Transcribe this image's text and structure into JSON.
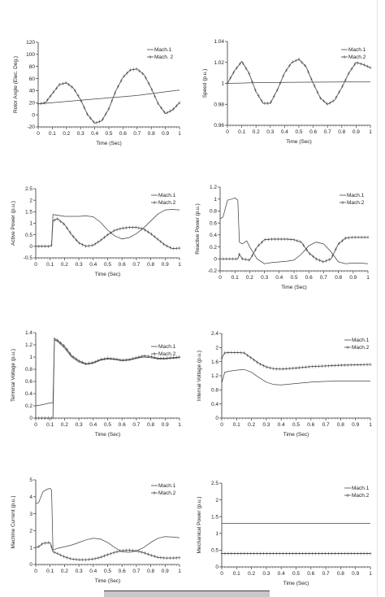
{
  "chart_data": [
    {
      "type": "line",
      "xlabel": "Time (Sec)",
      "ylabel": "Rotor Angle (Elec. Deg.)",
      "xlim": [
        0,
        1
      ],
      "ylim": [
        -20,
        120
      ],
      "xticks": [
        "0",
        "0.1",
        "0.2",
        "0.3",
        "0.4",
        "0.5",
        "0.6",
        "0.7",
        "0.8",
        "0.9",
        "1"
      ],
      "yticks": [
        "120",
        "100",
        "80",
        "60",
        "40",
        "20",
        "0",
        "-20"
      ],
      "ytick_values": [
        120,
        100,
        80,
        60,
        40,
        20,
        0,
        -20
      ],
      "legend": [
        "Mach.1",
        "Mach. 2"
      ],
      "series": [
        {
          "name": "Mach.1",
          "marker": false,
          "x": [
            0,
            0.1,
            0.2,
            0.3,
            0.4,
            0.5,
            0.6,
            0.7,
            0.8,
            0.9,
            1.0
          ],
          "y": [
            18,
            20,
            22,
            24,
            26,
            28,
            30,
            32,
            35,
            38,
            41
          ]
        },
        {
          "name": "Mach. 2",
          "marker": true,
          "x": [
            0,
            0.05,
            0.1,
            0.15,
            0.2,
            0.25,
            0.3,
            0.35,
            0.4,
            0.45,
            0.5,
            0.55,
            0.6,
            0.65,
            0.7,
            0.75,
            0.8,
            0.85,
            0.9,
            0.95,
            1.0
          ],
          "y": [
            18,
            20,
            35,
            50,
            53,
            44,
            25,
            0,
            -14,
            -10,
            10,
            40,
            62,
            74,
            76,
            66,
            44,
            18,
            2,
            8,
            20
          ]
        }
      ]
    },
    {
      "type": "line",
      "xlabel": "Time (Sec)",
      "ylabel": "Speed (p.u.)",
      "xlim": [
        0,
        1
      ],
      "ylim": [
        0.96,
        1.04
      ],
      "xticks": [
        "0",
        "0.1",
        "0.2",
        "0.3",
        "0.4",
        "0.5",
        "0.6",
        "0.7",
        "0.8",
        "0.9",
        "1"
      ],
      "yticks": [
        "1.04",
        "1.02",
        "1",
        "0.98",
        "0.96"
      ],
      "ytick_values": [
        1.04,
        1.02,
        1,
        0.98,
        0.96
      ],
      "legend": [
        "Mach.1",
        "Mach.2"
      ],
      "series": [
        {
          "name": "Mach.1",
          "marker": false,
          "x": [
            0,
            0.1,
            0.2,
            0.4,
            0.6,
            0.8,
            1.0
          ],
          "y": [
            1.0,
            1.0003,
            1.0007,
            1.001,
            1.0012,
            1.0013,
            1.0013
          ]
        },
        {
          "name": "Mach.2",
          "marker": true,
          "x": [
            0,
            0.05,
            0.1,
            0.15,
            0.2,
            0.25,
            0.3,
            0.35,
            0.4,
            0.45,
            0.5,
            0.55,
            0.6,
            0.65,
            0.7,
            0.75,
            0.8,
            0.85,
            0.9,
            0.95,
            1.0
          ],
          "y": [
            1.0,
            1.012,
            1.021,
            1.01,
            0.992,
            0.981,
            0.981,
            0.994,
            1.01,
            1.02,
            1.023,
            1.016,
            1.0,
            0.986,
            0.98,
            0.984,
            0.996,
            1.01,
            1.02,
            1.018,
            1.015
          ]
        }
      ]
    },
    {
      "type": "line",
      "xlabel": "Time (Sec)",
      "ylabel": "Active Power (p.u.)",
      "xlim": [
        0,
        1
      ],
      "ylim": [
        -0.5,
        2.5
      ],
      "xticks": [
        "0",
        "0.1",
        "0.2",
        "0.3",
        "0.4",
        "0.5",
        "0.6",
        "0.7",
        "0.8",
        "0.9",
        "1"
      ],
      "yticks": [
        "2.5",
        "2",
        "1.5",
        "1",
        "0.5",
        "0",
        "-0.5"
      ],
      "ytick_values": [
        2.5,
        2,
        1.5,
        1,
        0.5,
        0,
        -0.5
      ],
      "legend": [
        "Mach.1",
        "Mach.2"
      ],
      "series": [
        {
          "name": "Mach.1",
          "marker": false,
          "x": [
            0,
            0.1,
            0.11,
            0.12,
            0.2,
            0.3,
            0.35,
            0.4,
            0.45,
            0.5,
            0.55,
            0.6,
            0.65,
            0.7,
            0.75,
            0.8,
            0.85,
            0.9,
            0.95,
            1.0
          ],
          "y": [
            0,
            0,
            0.05,
            1.38,
            1.3,
            1.3,
            1.32,
            1.28,
            1.05,
            0.7,
            0.45,
            0.32,
            0.38,
            0.55,
            0.8,
            1.1,
            1.4,
            1.58,
            1.6,
            1.58
          ]
        },
        {
          "name": "Mach.2",
          "marker": true,
          "x": [
            0,
            0.1,
            0.11,
            0.12,
            0.15,
            0.2,
            0.25,
            0.3,
            0.35,
            0.4,
            0.45,
            0.5,
            0.55,
            0.6,
            0.65,
            0.7,
            0.75,
            0.8,
            0.85,
            0.9,
            0.95,
            1.0
          ],
          "y": [
            0,
            0,
            0.05,
            1.1,
            1.2,
            0.95,
            0.5,
            0.15,
            0.0,
            0.05,
            0.25,
            0.5,
            0.7,
            0.78,
            0.82,
            0.82,
            0.75,
            0.55,
            0.3,
            0.05,
            -0.1,
            -0.08
          ]
        }
      ]
    },
    {
      "type": "line",
      "xlabel": "Time (Sec)",
      "ylabel": "Reactive Power (p.u.)",
      "xlim": [
        0,
        1
      ],
      "ylim": [
        -0.2,
        1.2
      ],
      "xticks": [
        "0",
        "0.1",
        "0.2",
        "0.3",
        "0.4",
        "0.5",
        "0.6",
        "0.7",
        "0.8",
        "0.9",
        "1"
      ],
      "yticks": [
        "1.2",
        "1",
        "0.8",
        "0.6",
        "0.4",
        "0.2",
        "0",
        "-0.2"
      ],
      "ytick_values": [
        1.2,
        1,
        0.8,
        0.6,
        0.4,
        0.2,
        0,
        -0.2
      ],
      "legend": [
        "Mach.1",
        "Mach.2"
      ],
      "series": [
        {
          "name": "Mach.1",
          "marker": false,
          "x": [
            0,
            0.02,
            0.05,
            0.08,
            0.1,
            0.12,
            0.13,
            0.15,
            0.18,
            0.2,
            0.25,
            0.3,
            0.35,
            0.4,
            0.45,
            0.5,
            0.55,
            0.6,
            0.65,
            0.7,
            0.75,
            0.8,
            0.85,
            0.9,
            0.95,
            1.0
          ],
          "y": [
            0.67,
            0.7,
            0.98,
            1.0,
            1.02,
            0.98,
            0.28,
            0.25,
            0.3,
            0.2,
            0.0,
            -0.08,
            -0.06,
            -0.05,
            -0.04,
            -0.02,
            0.08,
            0.22,
            0.28,
            0.25,
            0.12,
            -0.05,
            -0.08,
            -0.07,
            -0.07,
            -0.08
          ]
        },
        {
          "name": "Mach.2",
          "marker": true,
          "x": [
            0,
            0.1,
            0.12,
            0.13,
            0.15,
            0.2,
            0.25,
            0.3,
            0.35,
            0.4,
            0.45,
            0.5,
            0.55,
            0.6,
            0.65,
            0.7,
            0.75,
            0.8,
            0.85,
            0.9,
            0.95,
            1.0
          ],
          "y": [
            0,
            0,
            0.0,
            0.08,
            0.0,
            -0.02,
            0.2,
            0.32,
            0.33,
            0.33,
            0.33,
            0.32,
            0.28,
            0.1,
            0.0,
            -0.05,
            0.0,
            0.25,
            0.35,
            0.36,
            0.36,
            0.36
          ]
        }
      ]
    },
    {
      "type": "line",
      "xlabel": "Time (Sec)",
      "ylabel": "Terminal Voltage (p.u.)",
      "xlim": [
        0,
        1
      ],
      "ylim": [
        0,
        1.4
      ],
      "xticks": [
        "0",
        "0.1",
        "0.2",
        "0.3",
        "0.4",
        "0.5",
        "0.6",
        "0.7",
        "0.8",
        "0.9",
        "1"
      ],
      "yticks": [
        "1.4",
        "1.2",
        "1",
        "0.8",
        "0.6",
        "0.4",
        "0.2",
        "0"
      ],
      "ytick_values": [
        1.4,
        1.2,
        1,
        0.8,
        0.6,
        0.4,
        0.2,
        0
      ],
      "legend": [
        "Mach.1",
        "Mach.2"
      ],
      "series": [
        {
          "name": "Mach.1",
          "marker": false,
          "x": [
            0,
            0.05,
            0.1,
            0.12,
            0.13,
            0.15,
            0.2,
            0.25,
            0.3,
            0.35,
            0.4,
            0.45,
            0.5,
            0.55,
            0.6,
            0.65,
            0.7,
            0.75,
            0.8,
            0.85,
            0.9,
            0.95,
            1.0
          ],
          "y": [
            0.2,
            0.22,
            0.25,
            0.25,
            1.28,
            1.26,
            1.15,
            1.0,
            0.92,
            0.88,
            0.9,
            0.95,
            0.97,
            0.96,
            0.94,
            0.95,
            0.98,
            1.0,
            0.99,
            0.97,
            0.97,
            0.98,
            0.99
          ]
        },
        {
          "name": "Mach.2",
          "marker": true,
          "x": [
            0,
            0.1,
            0.12,
            0.13,
            0.15,
            0.2,
            0.25,
            0.3,
            0.35,
            0.4,
            0.45,
            0.5,
            0.55,
            0.6,
            0.65,
            0.7,
            0.75,
            0.8,
            0.85,
            0.9,
            0.95,
            1.0
          ],
          "y": [
            0,
            0,
            0,
            1.3,
            1.28,
            1.18,
            1.02,
            0.94,
            0.89,
            0.91,
            0.96,
            0.98,
            0.97,
            0.95,
            0.96,
            0.99,
            1.02,
            1.01,
            0.98,
            0.98,
            0.99,
            1.0
          ]
        }
      ]
    },
    {
      "type": "line",
      "xlabel": "Time (Sec)",
      "ylabel": "Internal Voltage (p.u.)",
      "xlim": [
        0,
        1
      ],
      "ylim": [
        0,
        2.4
      ],
      "xticks": [
        "0",
        "0.1",
        "0.2",
        "0.3",
        "0.4",
        "0.5",
        "0.6",
        "0.7",
        "0.8",
        "0.9",
        "1"
      ],
      "yticks": [
        "2.4",
        "2",
        "1.6",
        "1.2",
        "0.8",
        "0.4",
        "0"
      ],
      "ytick_values": [
        2.4,
        2,
        1.6,
        1.2,
        0.8,
        0.4,
        0
      ],
      "legend": [
        "Mach.1",
        "Mach.2"
      ],
      "series": [
        {
          "name": "Mach.1",
          "marker": false,
          "x": [
            0,
            0.02,
            0.05,
            0.1,
            0.15,
            0.2,
            0.25,
            0.3,
            0.35,
            0.4,
            0.5,
            0.6,
            0.7,
            0.8,
            0.9,
            1.0
          ],
          "y": [
            1.0,
            1.3,
            1.33,
            1.36,
            1.38,
            1.3,
            1.15,
            1.02,
            0.95,
            0.94,
            0.98,
            1.02,
            1.04,
            1.05,
            1.05,
            1.05
          ]
        },
        {
          "name": "Mach.2",
          "marker": true,
          "x": [
            0,
            0.02,
            0.05,
            0.1,
            0.15,
            0.2,
            0.25,
            0.3,
            0.35,
            0.4,
            0.5,
            0.6,
            0.7,
            0.8,
            0.9,
            1.0
          ],
          "y": [
            1.7,
            1.85,
            1.86,
            1.86,
            1.85,
            1.7,
            1.55,
            1.45,
            1.4,
            1.39,
            1.42,
            1.46,
            1.48,
            1.5,
            1.51,
            1.52
          ]
        }
      ]
    },
    {
      "type": "line",
      "xlabel": "Time (Sec)",
      "ylabel": "Machine Current (p.u.)",
      "xlim": [
        0,
        1
      ],
      "ylim": [
        0,
        5
      ],
      "xticks": [
        "0",
        "0.1",
        "0.2",
        "0.3",
        "0.4",
        "0.5",
        "0.6",
        "0.7",
        "0.8",
        "0.9",
        "1"
      ],
      "yticks": [
        "5",
        "4",
        "3",
        "2",
        "1",
        "0"
      ],
      "ytick_values": [
        5,
        4,
        3,
        2,
        1,
        0
      ],
      "legend": [
        "Mach.1",
        "Mach.2"
      ],
      "series": [
        {
          "name": "Mach.1",
          "marker": false,
          "x": [
            0,
            0.02,
            0.05,
            0.08,
            0.1,
            0.11,
            0.12,
            0.15,
            0.2,
            0.25,
            0.3,
            0.35,
            0.4,
            0.45,
            0.5,
            0.55,
            0.6,
            0.65,
            0.7,
            0.75,
            0.8,
            0.85,
            0.9,
            0.95,
            1.0
          ],
          "y": [
            3.6,
            3.65,
            4.3,
            4.45,
            4.5,
            4.4,
            0.85,
            0.95,
            1.05,
            1.15,
            1.3,
            1.45,
            1.55,
            1.5,
            1.3,
            1.0,
            0.75,
            0.72,
            0.8,
            1.0,
            1.3,
            1.55,
            1.65,
            1.62,
            1.58
          ]
        },
        {
          "name": "Mach.2",
          "marker": true,
          "x": [
            0,
            0.02,
            0.05,
            0.1,
            0.12,
            0.15,
            0.2,
            0.25,
            0.3,
            0.35,
            0.4,
            0.45,
            0.5,
            0.55,
            0.6,
            0.65,
            0.7,
            0.75,
            0.8,
            0.85,
            0.9,
            0.95,
            1.0
          ],
          "y": [
            1.0,
            1.05,
            1.25,
            1.3,
            0.75,
            0.65,
            0.45,
            0.32,
            0.28,
            0.28,
            0.32,
            0.42,
            0.58,
            0.72,
            0.82,
            0.85,
            0.8,
            0.7,
            0.55,
            0.42,
            0.38,
            0.38,
            0.4
          ]
        }
      ]
    },
    {
      "type": "line",
      "xlabel": "Time (Sec)",
      "ylabel": "Mechanical Power (p.u.)",
      "xlim": [
        0,
        1
      ],
      "ylim": [
        0,
        2.5
      ],
      "xticks": [
        "0",
        "0.1",
        "0.2",
        "0.3",
        "0.4",
        "0.5",
        "0.6",
        "0.7",
        "0.8",
        "0.9",
        "1"
      ],
      "yticks": [
        "2.5",
        "2",
        "1.5",
        "1",
        "0.5",
        "0"
      ],
      "ytick_values": [
        2.5,
        2,
        1.5,
        1,
        0.5,
        0
      ],
      "legend": [
        "Mach.1",
        "Mach.2"
      ],
      "series": [
        {
          "name": "Mach.1",
          "marker": false,
          "x": [
            0,
            1.0
          ],
          "y": [
            1.3,
            1.3
          ]
        },
        {
          "name": "Mach.2",
          "marker": true,
          "x": [
            0,
            0.05,
            0.1,
            0.15,
            0.2,
            0.25,
            0.3,
            0.35,
            0.4,
            0.45,
            0.5,
            0.55,
            0.6,
            0.65,
            0.7,
            0.75,
            0.8,
            0.85,
            0.9,
            0.95,
            1.0
          ],
          "y": [
            0.4,
            0.4,
            0.4,
            0.4,
            0.4,
            0.4,
            0.4,
            0.4,
            0.4,
            0.4,
            0.4,
            0.4,
            0.4,
            0.4,
            0.4,
            0.4,
            0.4,
            0.4,
            0.4,
            0.4,
            0.4
          ]
        }
      ]
    }
  ]
}
